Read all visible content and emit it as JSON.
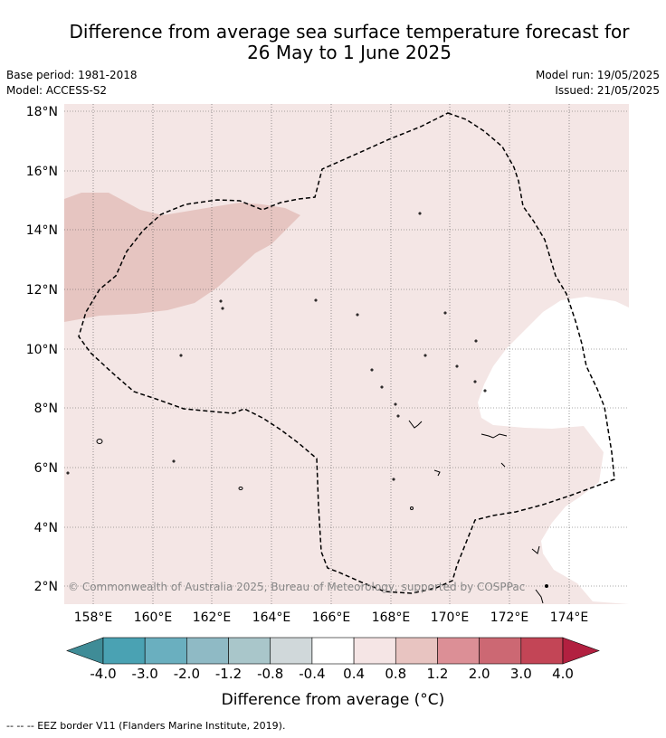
{
  "title_line1": "Difference from average sea surface temperature forecast for",
  "title_line2": "26 May to 1 June 2025",
  "meta": {
    "base_period": "Base period: 1981-2018",
    "model": "Model: ACCESS-S2",
    "model_run": "Model run: 19/05/2025",
    "issued": "Issued: 21/05/2025"
  },
  "map": {
    "lat_labels": [
      "18°N",
      "16°N",
      "14°N",
      "12°N",
      "10°N",
      "8°N",
      "6°N",
      "4°N",
      "2°N"
    ],
    "lon_labels": [
      "158°E",
      "160°E",
      "162°E",
      "164°E",
      "166°E",
      "168°E",
      "170°E",
      "172°E",
      "174°E"
    ],
    "copyright": "© Commonwealth of Australia 2025, Bureau of Meteorology, supported by COSPPac",
    "colors": {
      "background_anomaly": "#f4e6e5",
      "warm_patch": "#e6c5c1",
      "neutral": "#ffffff",
      "eez_line": "#000000"
    }
  },
  "colorbar": {
    "label": "Difference from average (°C)",
    "ticks": [
      "-4.0",
      "-3.0",
      "-2.0",
      "-1.2",
      "-0.8",
      "-0.4",
      "0.4",
      "0.8",
      "1.2",
      "2.0",
      "3.0",
      "4.0"
    ],
    "colors": [
      "#3f8c97",
      "#4aa2b3",
      "#6aafbf",
      "#8fbac5",
      "#a9c6ca",
      "#d0d8da",
      "#ffffff",
      "#f5e5e5",
      "#e8c4c1",
      "#dc8f96",
      "#cc6873",
      "#c34556",
      "#b22040"
    ]
  },
  "footer": "--  --  -- EEZ border V11 (Flanders Marine Institute, 2019)."
}
